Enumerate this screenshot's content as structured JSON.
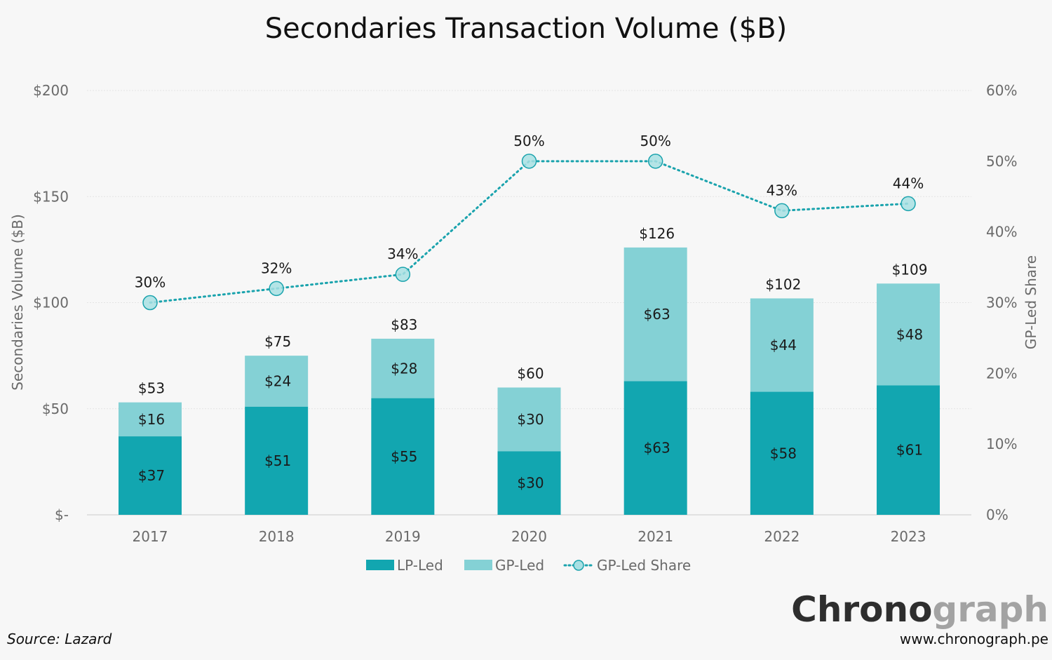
{
  "chart_data": {
    "type": "bar",
    "stacked": true,
    "title": "Secondaries Transaction Volume ($B)",
    "categories": [
      "2017",
      "2018",
      "2019",
      "2020",
      "2021",
      "2022",
      "2023"
    ],
    "series": [
      {
        "name": "LP-Led",
        "values": [
          37,
          51,
          55,
          30,
          63,
          58,
          61
        ],
        "labels": [
          "$37",
          "$51",
          "$55",
          "$30",
          "$63",
          "$58",
          "$61"
        ],
        "color": "#12a6b0"
      },
      {
        "name": "GP-Led",
        "values": [
          16,
          24,
          28,
          30,
          63,
          44,
          48
        ],
        "labels": [
          "$16",
          "$24",
          "$28",
          "$30",
          "$63",
          "$44",
          "$48"
        ],
        "color": "#84d1d5"
      }
    ],
    "totals": [
      53,
      75,
      83,
      60,
      126,
      102,
      109
    ],
    "total_labels": [
      "$53",
      "$75",
      "$83",
      "$60",
      "$126",
      "$102",
      "$109"
    ],
    "line_series": {
      "name": "GP-Led Share",
      "axis": "right",
      "values": [
        30,
        32,
        34,
        50,
        50,
        43,
        44
      ],
      "labels": [
        "30%",
        "32%",
        "34%",
        "50%",
        "50%",
        "43%",
        "44%"
      ],
      "color": "#1aa3ad"
    },
    "ylabel": "Secondaries Volume ($B)",
    "y2label": "GP-Led Share",
    "ylim": [
      0,
      200
    ],
    "y2lim": [
      0,
      60
    ],
    "yticks": [
      0,
      50,
      100,
      150,
      200
    ],
    "ytick_labels": [
      "$-",
      "$50",
      "$100",
      "$150",
      "$200"
    ],
    "y2ticks": [
      0,
      10,
      20,
      30,
      40,
      50,
      60
    ],
    "y2tick_labels": [
      "0%",
      "10%",
      "20%",
      "30%",
      "40%",
      "50%",
      "60%"
    ],
    "grid": true,
    "legend_position": "bottom-center"
  },
  "source": "Source: Lazard",
  "brand": {
    "part1": "Chrono",
    "part2": "graph"
  },
  "url": "www.chronograph.pe"
}
